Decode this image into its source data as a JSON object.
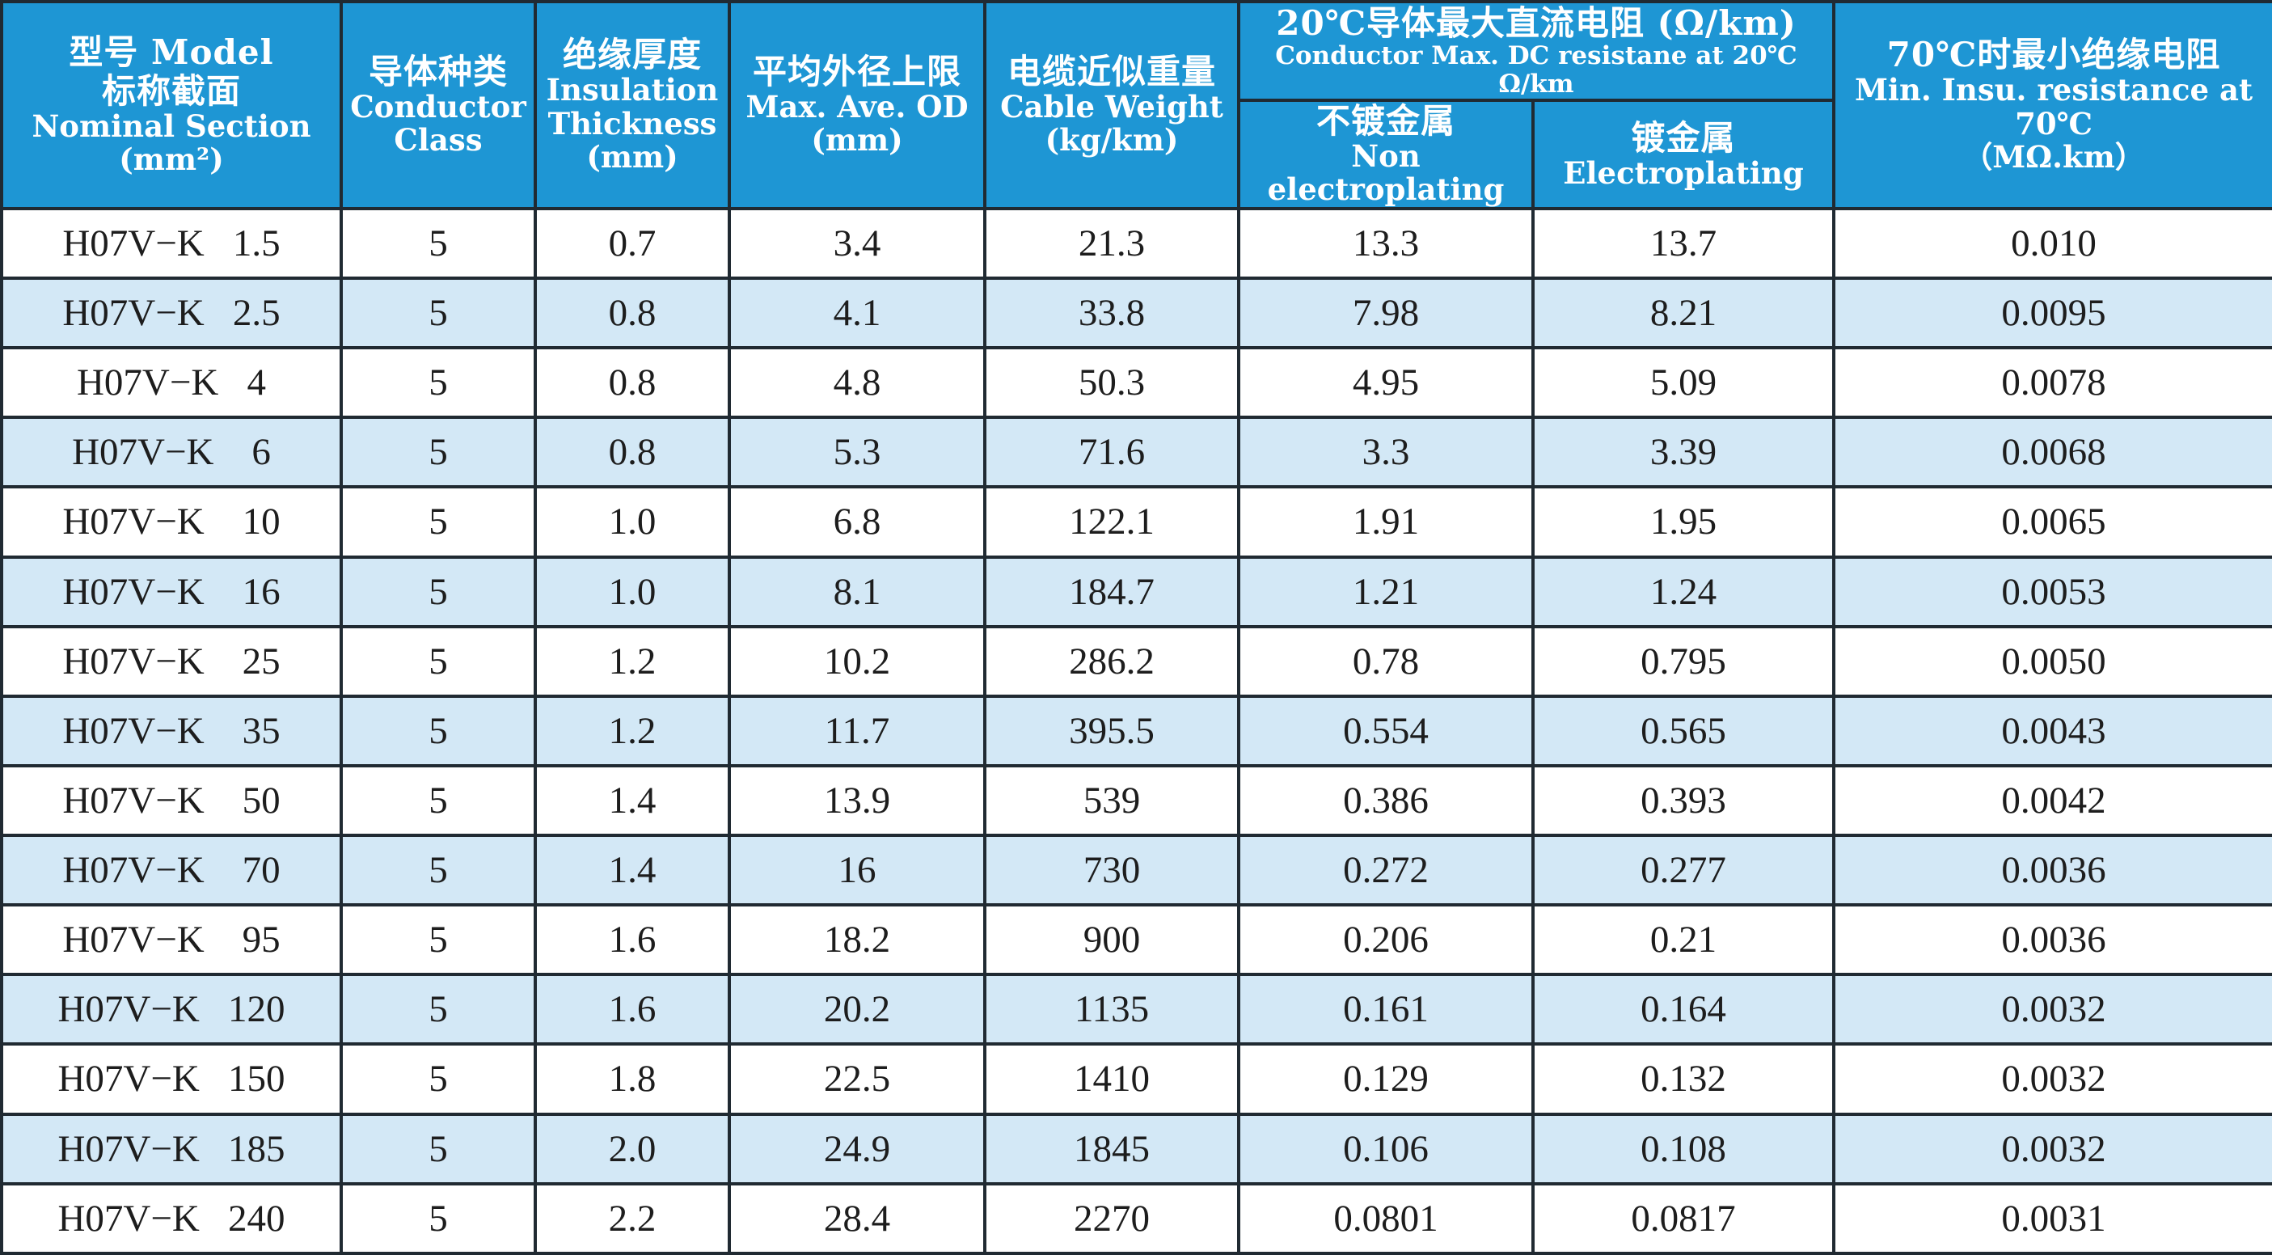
{
  "header": {
    "model": {
      "cn": "型号 Model",
      "cn2": "标称截面",
      "en": "Nominal Section",
      "unit": "(mm²)"
    },
    "conductor_class": {
      "cn": "导体种类",
      "en": "Conductor",
      "en2": "Class"
    },
    "insulation": {
      "cn": "绝缘厚度",
      "en": "Insulation",
      "en2": "Thickness",
      "unit": "(mm)"
    },
    "od": {
      "cn": "平均外径上限",
      "en": "Max. Ave. OD",
      "unit": "(mm)"
    },
    "weight": {
      "cn": "电缆近似重量",
      "en": "Cable  Weight",
      "unit": "(kg/km)"
    },
    "resistance": {
      "cn": "20℃导体最大直流电阻 (Ω/km)",
      "en": "Conductor Max. DC resistane at 20℃ Ω/km"
    },
    "non_plating": {
      "cn": "不镀金属",
      "en": "Non electroplating"
    },
    "plating": {
      "cn": "镀金属",
      "en": "Electroplating"
    },
    "insu_res": {
      "cn": "70℃时最小绝缘电阻",
      "en": "Min. Insu. resistance at 70℃",
      "unit": "（MΩ.km）"
    }
  },
  "rows": [
    {
      "model": "H07V−K   1.5",
      "class": "5",
      "insulation": "0.7",
      "od": "3.4",
      "weight": "21.3",
      "non_plating": "13.3",
      "plating": "13.7",
      "insu_res": "0.010"
    },
    {
      "model": "H07V−K   2.5",
      "class": "5",
      "insulation": "0.8",
      "od": "4.1",
      "weight": "33.8",
      "non_plating": "7.98",
      "plating": "8.21",
      "insu_res": "0.0095"
    },
    {
      "model": "H07V−K   4",
      "class": "5",
      "insulation": "0.8",
      "od": "4.8",
      "weight": "50.3",
      "non_plating": "4.95",
      "plating": "5.09",
      "insu_res": "0.0078"
    },
    {
      "model": "H07V−K    6",
      "class": "5",
      "insulation": "0.8",
      "od": "5.3",
      "weight": "71.6",
      "non_plating": "3.3",
      "plating": "3.39",
      "insu_res": "0.0068"
    },
    {
      "model": "H07V−K    10",
      "class": "5",
      "insulation": "1.0",
      "od": "6.8",
      "weight": "122.1",
      "non_plating": "1.91",
      "plating": "1.95",
      "insu_res": "0.0065"
    },
    {
      "model": "H07V−K    16",
      "class": "5",
      "insulation": "1.0",
      "od": "8.1",
      "weight": "184.7",
      "non_plating": "1.21",
      "plating": "1.24",
      "insu_res": "0.0053"
    },
    {
      "model": "H07V−K    25",
      "class": "5",
      "insulation": "1.2",
      "od": "10.2",
      "weight": "286.2",
      "non_plating": "0.78",
      "plating": "0.795",
      "insu_res": "0.0050"
    },
    {
      "model": "H07V−K    35",
      "class": "5",
      "insulation": "1.2",
      "od": "11.7",
      "weight": "395.5",
      "non_plating": "0.554",
      "plating": "0.565",
      "insu_res": "0.0043"
    },
    {
      "model": "H07V−K    50",
      "class": "5",
      "insulation": "1.4",
      "od": "13.9",
      "weight": "539",
      "non_plating": "0.386",
      "plating": "0.393",
      "insu_res": "0.0042"
    },
    {
      "model": "H07V−K    70",
      "class": "5",
      "insulation": "1.4",
      "od": "16",
      "weight": "730",
      "non_plating": "0.272",
      "plating": "0.277",
      "insu_res": "0.0036"
    },
    {
      "model": "H07V−K    95",
      "class": "5",
      "insulation": "1.6",
      "od": "18.2",
      "weight": "900",
      "non_plating": "0.206",
      "plating": "0.21",
      "insu_res": "0.0036"
    },
    {
      "model": "H07V−K   120",
      "class": "5",
      "insulation": "1.6",
      "od": "20.2",
      "weight": "1135",
      "non_plating": "0.161",
      "plating": "0.164",
      "insu_res": "0.0032"
    },
    {
      "model": "H07V−K   150",
      "class": "5",
      "insulation": "1.8",
      "od": "22.5",
      "weight": "1410",
      "non_plating": "0.129",
      "plating": "0.132",
      "insu_res": "0.0032"
    },
    {
      "model": "H07V−K   185",
      "class": "5",
      "insulation": "2.0",
      "od": "24.9",
      "weight": "1845",
      "non_plating": "0.106",
      "plating": "0.108",
      "insu_res": "0.0032"
    },
    {
      "model": "H07V−K   240",
      "class": "5",
      "insulation": "2.2",
      "od": "28.4",
      "weight": "2270",
      "non_plating": "0.0801",
      "plating": "0.0817",
      "insu_res": "0.0031"
    }
  ],
  "colors": {
    "header_bg": "#1e96d4",
    "header_text": "#ffffff",
    "row_alt_bg": "#d3e8f6",
    "row_bg": "#ffffff",
    "border": "#202a32"
  }
}
